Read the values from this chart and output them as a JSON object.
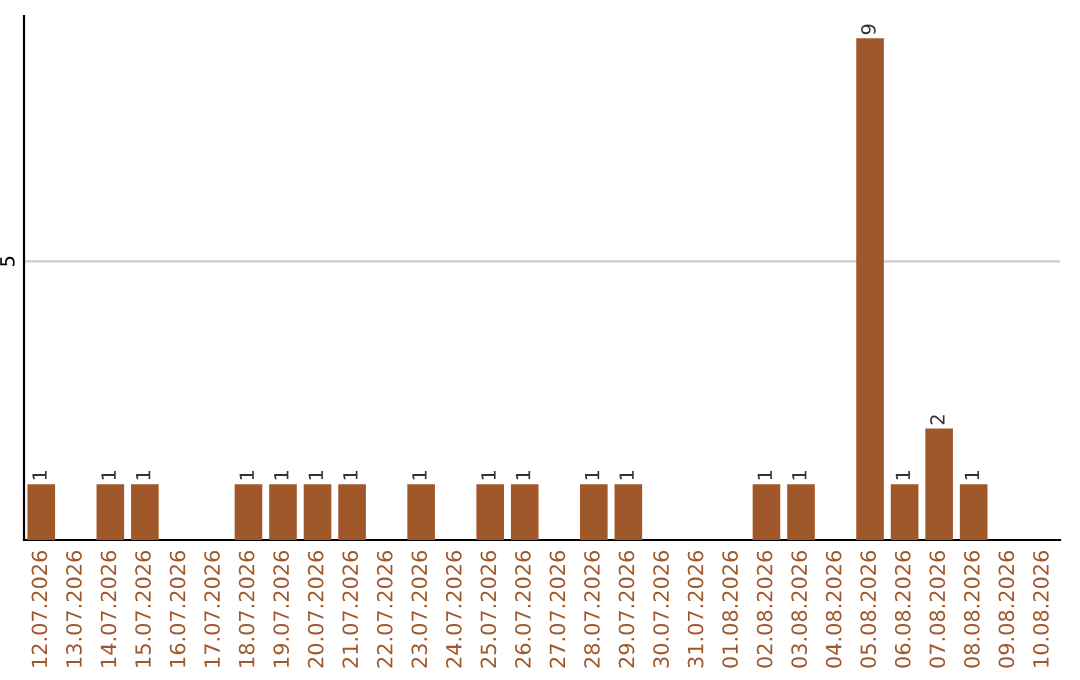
{
  "chart_data": {
    "type": "bar",
    "categories": [
      "12.07.2026",
      "13.07.2026",
      "14.07.2026",
      "15.07.2026",
      "16.07.2026",
      "17.07.2026",
      "18.07.2026",
      "19.07.2026",
      "20.07.2026",
      "21.07.2026",
      "22.07.2026",
      "23.07.2026",
      "24.07.2026",
      "25.07.2026",
      "26.07.2026",
      "27.07.2026",
      "28.07.2026",
      "29.07.2026",
      "30.07.2026",
      "31.07.2026",
      "01.08.2026",
      "02.08.2026",
      "03.08.2026",
      "04.08.2026",
      "05.08.2026",
      "06.08.2026",
      "07.08.2026",
      "08.08.2026",
      "09.08.2026",
      "10.08.2026"
    ],
    "values": [
      1,
      0,
      1,
      1,
      0,
      0,
      1,
      1,
      1,
      1,
      0,
      1,
      0,
      1,
      1,
      0,
      1,
      1,
      0,
      0,
      0,
      1,
      1,
      0,
      9,
      1,
      2,
      1,
      0,
      0
    ],
    "value_labels": [
      "1",
      null,
      "1",
      "1",
      null,
      null,
      "1",
      "1",
      "1",
      "1",
      null,
      "1",
      null,
      "1",
      "1",
      null,
      "1",
      "1",
      null,
      null,
      null,
      "1",
      "1",
      null,
      "9",
      "1",
      "2",
      "1",
      null,
      null
    ],
    "color": "#a0572a",
    "ylim": [
      0,
      9.4
    ],
    "yticks": [
      5
    ],
    "grid": "y",
    "legend": false
  }
}
